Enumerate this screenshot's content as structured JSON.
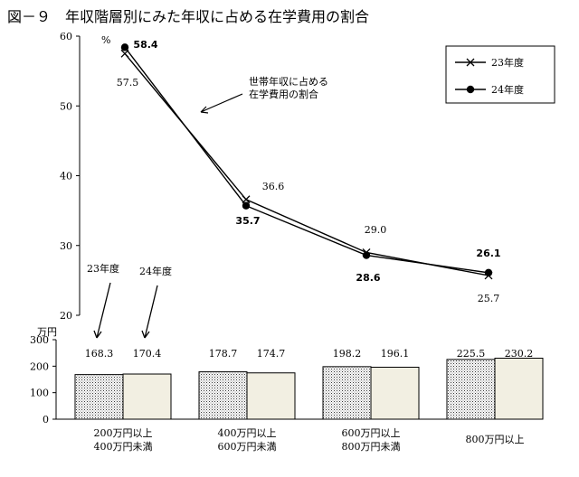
{
  "figure": {
    "title": "図－９　年収階層別にみた年収に占める在学費用の割合"
  },
  "chart_data": [
    {
      "type": "line",
      "ylabel": "%",
      "ylim": [
        20,
        60
      ],
      "yticks": [
        "20",
        "30",
        "40",
        "50",
        "60"
      ],
      "categories": [
        "200万円以上400万円未満",
        "400万円以上600万円未満",
        "600万円以上800万円未満",
        "800万円以上"
      ],
      "series": [
        {
          "name": "23年度",
          "marker": "x",
          "values": [
            57.5,
            36.6,
            29.0,
            25.7
          ],
          "value_labels": [
            "57.5",
            "36.6",
            "29.0",
            "25.7"
          ],
          "color": "#000000"
        },
        {
          "name": "24年度",
          "marker": "circle",
          "values": [
            58.4,
            35.7,
            28.6,
            26.1
          ],
          "value_labels": [
            "58.4",
            "35.7",
            "28.6",
            "26.1"
          ],
          "color": "#000000"
        }
      ],
      "annotation": [
        "世帯年収に占める",
        "在学費用の割合"
      ],
      "legend_position": "top-right",
      "grid": false
    },
    {
      "type": "bar",
      "ylabel": "万円",
      "ylim": [
        0,
        300
      ],
      "yticks": [
        "0",
        "100",
        "200",
        "300"
      ],
      "categories": [
        [
          "200万円以上",
          "400万円未満"
        ],
        [
          "400万円以上",
          "600万円未満"
        ],
        [
          "600万円以上",
          "800万円未満"
        ],
        [
          "800万円以上"
        ]
      ],
      "series": [
        {
          "name": "23年度",
          "values": [
            168.3,
            178.7,
            198.2,
            225.5
          ],
          "value_labels": [
            "168.3",
            "178.7",
            "198.2",
            "225.5"
          ],
          "fill": "dotted"
        },
        {
          "name": "24年度",
          "values": [
            170.4,
            174.7,
            196.1,
            230.2
          ],
          "value_labels": [
            "170.4",
            "174.7",
            "196.1",
            "230.2"
          ],
          "fill": "#f2efe2"
        }
      ],
      "series_callouts": [
        "23年度",
        "24年度"
      ],
      "grid": false
    }
  ]
}
